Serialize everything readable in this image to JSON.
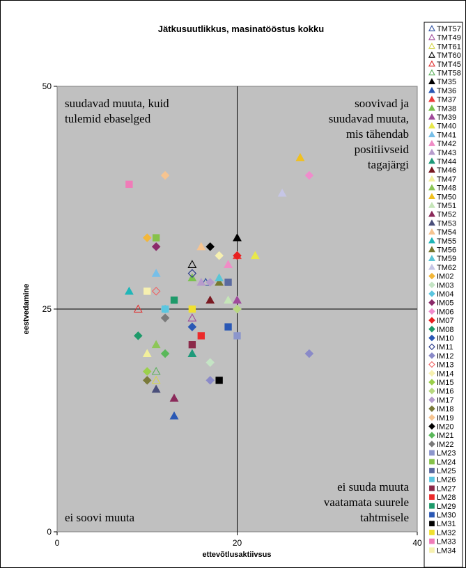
{
  "chart_data": {
    "type": "scatter",
    "title": "Jätkusuutlikkus, masinatööstus kokku",
    "xlabel": "ettevõtlusaktiivsus",
    "ylabel": "eestvedamine",
    "xlim": [
      0,
      40
    ],
    "ylim": [
      0,
      50
    ],
    "xticks": [
      "0",
      "20",
      "40"
    ],
    "yticks": [
      "0",
      "25",
      "50"
    ],
    "midlines": {
      "x": 20,
      "y": 25
    },
    "background": "#c0c0c0",
    "quadrant_labels": {
      "top_left": [
        "suudavad muuta, kuid",
        "tulemid ebaselged"
      ],
      "top_right": [
        "soovivad ja",
        "suudavad muuta,",
        "mis tähendab",
        "positiivseid",
        "tagajärgi"
      ],
      "bottom_left": [
        "ei soovi muuta"
      ],
      "bottom_right": [
        "ei suuda muuta",
        "vaatamata suurele",
        "tahtmisele"
      ]
    },
    "series": [
      {
        "name": "TMT57",
        "marker": "triangle-open",
        "color": "#2e4fa0",
        "points": [
          [
            16.5,
            28
          ]
        ]
      },
      {
        "name": "TMT49",
        "marker": "triangle-open",
        "color": "#a04b9b",
        "points": [
          [
            15,
            24
          ]
        ]
      },
      {
        "name": "TMT61",
        "marker": "triangle-open",
        "color": "#d6d64a",
        "points": [
          [
            11,
            17
          ]
        ]
      },
      {
        "name": "TMT60",
        "marker": "triangle-open",
        "color": "#000000",
        "points": [
          [
            15,
            30
          ]
        ]
      },
      {
        "name": "TMT45",
        "marker": "triangle-open",
        "color": "#e03030",
        "points": [
          [
            9,
            25
          ]
        ]
      },
      {
        "name": "TMT58",
        "marker": "triangle-open",
        "color": "#5db05d",
        "points": [
          [
            11,
            18
          ]
        ]
      },
      {
        "name": "TM35",
        "marker": "triangle",
        "color": "#000000",
        "points": [
          [
            20,
            33
          ]
        ]
      },
      {
        "name": "TM36",
        "marker": "triangle",
        "color": "#2a58b5",
        "points": [
          [
            13,
            13
          ]
        ]
      },
      {
        "name": "TM37",
        "marker": "triangle",
        "color": "#ec3b3b",
        "points": [
          [
            20,
            31
          ]
        ]
      },
      {
        "name": "TM38",
        "marker": "triangle",
        "color": "#7cc24f",
        "points": [
          [
            15,
            28.5
          ]
        ]
      },
      {
        "name": "TM39",
        "marker": "triangle",
        "color": "#a04b9b",
        "points": [
          [
            20,
            26
          ]
        ]
      },
      {
        "name": "TM40",
        "marker": "triangle",
        "color": "#e8e84a",
        "points": [
          [
            22,
            31
          ]
        ]
      },
      {
        "name": "TM41",
        "marker": "triangle",
        "color": "#77bfe8",
        "points": [
          [
            11,
            29
          ]
        ]
      },
      {
        "name": "TM42",
        "marker": "triangle",
        "color": "#f08cc6",
        "points": [
          [
            19,
            30
          ]
        ]
      },
      {
        "name": "TM43",
        "marker": "triangle",
        "color": "#b79bcc",
        "points": [
          [
            16,
            28
          ]
        ]
      },
      {
        "name": "TM44",
        "marker": "triangle",
        "color": "#1e9a7a",
        "points": [
          [
            15,
            20
          ]
        ]
      },
      {
        "name": "TM46",
        "marker": "triangle",
        "color": "#7a1a22",
        "points": [
          [
            17,
            26
          ]
        ]
      },
      {
        "name": "TM47",
        "marker": "triangle",
        "color": "#f2ef9c",
        "points": [
          [
            10,
            20
          ]
        ]
      },
      {
        "name": "TM48",
        "marker": "triangle",
        "color": "#8dc657",
        "points": [
          [
            11,
            21
          ]
        ]
      },
      {
        "name": "TM50",
        "marker": "triangle",
        "color": "#f0c020",
        "points": [
          [
            27,
            42
          ]
        ]
      },
      {
        "name": "TM51",
        "marker": "triangle",
        "color": "#c5e5b8",
        "points": [
          [
            19,
            26
          ]
        ]
      },
      {
        "name": "TM52",
        "marker": "triangle",
        "color": "#8b2a5a",
        "points": [
          [
            13,
            15
          ]
        ]
      },
      {
        "name": "TM53",
        "marker": "triangle",
        "color": "#4a4f7a",
        "points": [
          [
            11,
            16
          ]
        ]
      },
      {
        "name": "TM54",
        "marker": "triangle",
        "color": "#f6c490",
        "points": [
          [
            16,
            32
          ]
        ]
      },
      {
        "name": "TM55",
        "marker": "triangle",
        "color": "#20b6b8",
        "points": [
          [
            8,
            27
          ]
        ]
      },
      {
        "name": "TM56",
        "marker": "triangle",
        "color": "#787830",
        "points": [
          [
            18,
            28
          ]
        ]
      },
      {
        "name": "TM59",
        "marker": "triangle",
        "color": "#5bc6d6",
        "points": [
          [
            18,
            28.5
          ]
        ]
      },
      {
        "name": "TM62",
        "marker": "triangle",
        "color": "#c6c6e6",
        "points": [
          [
            25,
            38
          ]
        ]
      },
      {
        "name": "IM02",
        "marker": "diamond",
        "color": "#f3b73a",
        "points": [
          [
            10,
            33
          ]
        ]
      },
      {
        "name": "IM03",
        "marker": "diamond",
        "color": "#c4e4c4",
        "points": [
          [
            17,
            19
          ]
        ]
      },
      {
        "name": "IM04",
        "marker": "diamond",
        "color": "#5bc6e0",
        "points": [
          [
            12,
            25
          ]
        ]
      },
      {
        "name": "IM05",
        "marker": "diamond",
        "color": "#8b2a6a",
        "points": [
          [
            11,
            32
          ]
        ]
      },
      {
        "name": "IM06",
        "marker": "diamond",
        "color": "#f08ccc",
        "points": [
          [
            28,
            40
          ]
        ]
      },
      {
        "name": "IM07",
        "marker": "diamond",
        "color": "#e82020",
        "points": [
          [
            20,
            31
          ]
        ]
      },
      {
        "name": "IM08",
        "marker": "diamond",
        "color": "#1e9a6a",
        "points": [
          [
            9,
            22
          ]
        ]
      },
      {
        "name": "IM10",
        "marker": "diamond",
        "color": "#2a58b5",
        "points": [
          [
            15,
            23
          ]
        ]
      },
      {
        "name": "IM11",
        "marker": "diamond-open",
        "color": "#2a3a8a",
        "points": [
          [
            15,
            29
          ]
        ]
      },
      {
        "name": "IM12",
        "marker": "diamond",
        "color": "#8a8ac8",
        "points": [
          [
            17,
            17
          ],
          [
            28,
            20
          ]
        ]
      },
      {
        "name": "IM13",
        "marker": "diamond-open",
        "color": "#f06060",
        "points": [
          [
            11,
            27
          ]
        ]
      },
      {
        "name": "IM14",
        "marker": "diamond",
        "color": "#f6f0b0",
        "points": [
          [
            18,
            31
          ]
        ]
      },
      {
        "name": "IM15",
        "marker": "diamond",
        "color": "#9bd04b",
        "points": [
          [
            10,
            18
          ]
        ]
      },
      {
        "name": "IM16",
        "marker": "diamond",
        "color": "#b8d880",
        "points": [
          [
            20,
            25
          ]
        ]
      },
      {
        "name": "IM17",
        "marker": "diamond",
        "color": "#b49ccc",
        "points": [
          [
            17,
            28
          ]
        ]
      },
      {
        "name": "IM18",
        "marker": "diamond",
        "color": "#7a7a3a",
        "points": [
          [
            10,
            17
          ]
        ]
      },
      {
        "name": "IM19",
        "marker": "diamond",
        "color": "#f6c490",
        "points": [
          [
            12,
            40
          ]
        ]
      },
      {
        "name": "IM20",
        "marker": "diamond",
        "color": "#000000",
        "points": [
          [
            17,
            32
          ]
        ]
      },
      {
        "name": "IM21",
        "marker": "diamond",
        "color": "#5ab85a",
        "points": [
          [
            12,
            20
          ]
        ]
      },
      {
        "name": "IM22",
        "marker": "diamond",
        "color": "#7a7a7a",
        "points": [
          [
            12,
            24
          ]
        ]
      },
      {
        "name": "LM23",
        "marker": "square",
        "color": "#8c96cc",
        "points": [
          [
            20,
            22
          ]
        ]
      },
      {
        "name": "LM24",
        "marker": "square",
        "color": "#86c24a",
        "points": [
          [
            11,
            33
          ]
        ]
      },
      {
        "name": "LM25",
        "marker": "square",
        "color": "#5a6aa0",
        "points": [
          [
            19,
            28
          ]
        ]
      },
      {
        "name": "LM26",
        "marker": "square",
        "color": "#5bc6e0",
        "points": [
          [
            12,
            25
          ]
        ]
      },
      {
        "name": "LM27",
        "marker": "square",
        "color": "#8b2a4a",
        "points": [
          [
            15,
            21
          ]
        ]
      },
      {
        "name": "LM28",
        "marker": "square",
        "color": "#ec2a2a",
        "points": [
          [
            16,
            22
          ]
        ]
      },
      {
        "name": "LM29",
        "marker": "square",
        "color": "#1e9a6a",
        "points": [
          [
            13,
            26
          ]
        ]
      },
      {
        "name": "LM30",
        "marker": "square",
        "color": "#2a58b5",
        "points": [
          [
            19,
            23
          ]
        ]
      },
      {
        "name": "LM31",
        "marker": "square",
        "color": "#000000",
        "points": [
          [
            18,
            17
          ]
        ]
      },
      {
        "name": "LM32",
        "marker": "square",
        "color": "#f0e030",
        "points": [
          [
            15,
            25
          ]
        ]
      },
      {
        "name": "LM33",
        "marker": "square",
        "color": "#f07cb8",
        "points": [
          [
            8,
            39
          ]
        ]
      },
      {
        "name": "LM34",
        "marker": "square",
        "color": "#f6f0b0",
        "points": [
          [
            10,
            27
          ]
        ]
      }
    ]
  }
}
